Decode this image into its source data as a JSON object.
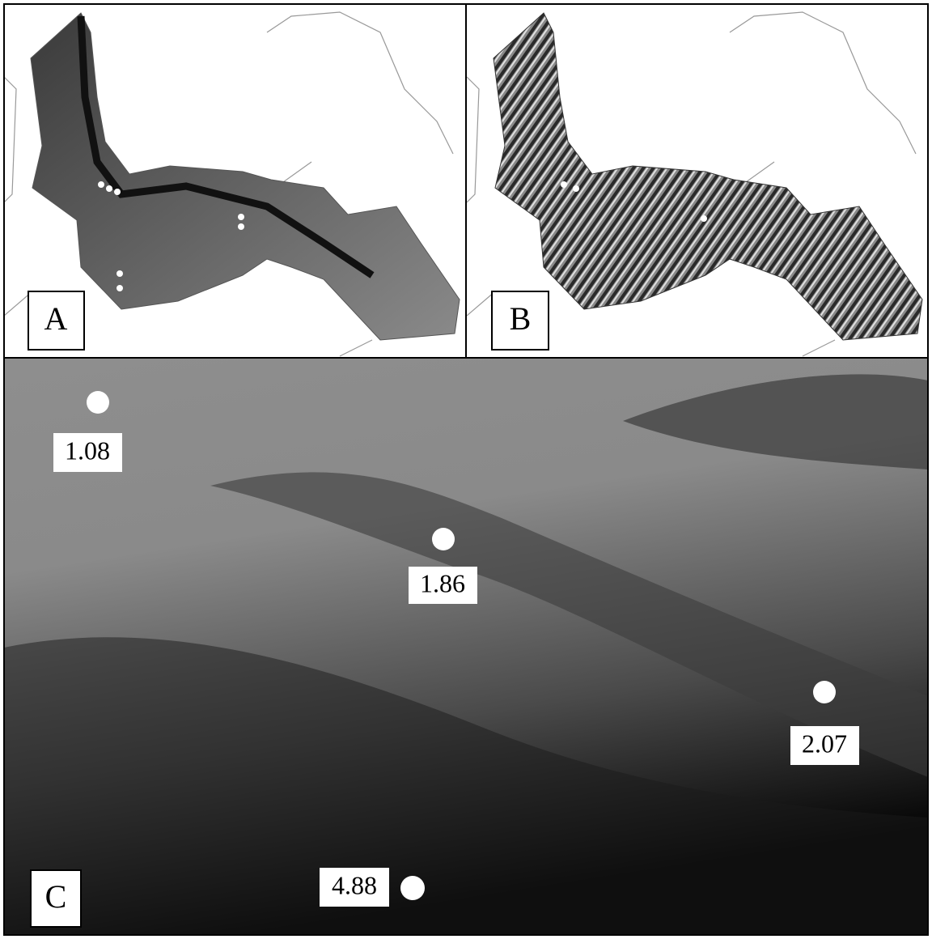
{
  "panels": [
    {
      "label": "A"
    },
    {
      "label": "B"
    },
    {
      "label": "C"
    }
  ],
  "points": [
    {
      "label": "1.08"
    },
    {
      "label": "1.86"
    },
    {
      "label": "2.07"
    },
    {
      "label": "4.88"
    }
  ]
}
